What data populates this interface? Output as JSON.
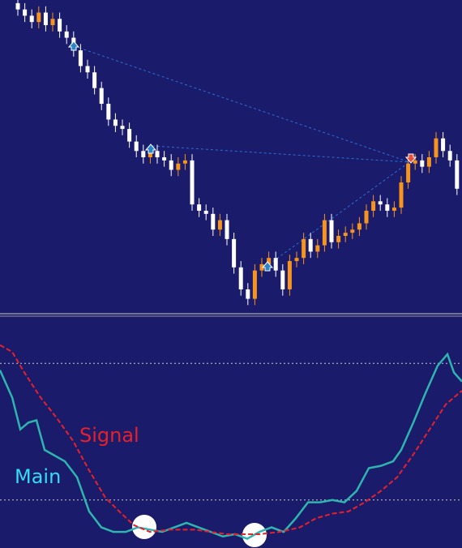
{
  "chart_data": [
    {
      "type": "candlestick",
      "xlim": [
        -2.56,
        63.72
      ],
      "ylim": [
        0,
        100
      ],
      "up_color": "#f7941d",
      "down_color": "#ffffff",
      "open": [
        99,
        97,
        95,
        93,
        96,
        92,
        94,
        90,
        88,
        84,
        79,
        77,
        72,
        67,
        62,
        60,
        59,
        55,
        52,
        50,
        52,
        50,
        49,
        46,
        48,
        49,
        35,
        33,
        32,
        27,
        30,
        24,
        15,
        8,
        5,
        14,
        16,
        18,
        14,
        8,
        17,
        18,
        24,
        20,
        22,
        30,
        23,
        25,
        26,
        27,
        29,
        33,
        36,
        35,
        33,
        34,
        42,
        48,
        49,
        47,
        50,
        56,
        52,
        49
      ],
      "high": [
        100,
        99,
        97,
        98,
        98,
        96,
        96,
        92,
        90,
        86,
        81,
        79,
        74,
        69,
        64,
        62,
        61,
        57,
        54,
        54,
        54,
        52,
        51,
        50,
        51,
        51,
        37,
        35,
        34,
        32,
        32,
        26,
        17,
        10,
        16,
        18,
        20,
        20,
        16,
        19,
        20,
        26,
        26,
        24,
        32,
        32,
        27,
        28,
        29,
        31,
        35,
        38,
        38,
        37,
        36,
        44,
        50,
        51,
        51,
        52,
        58,
        58,
        54,
        51
      ],
      "low": [
        95,
        93,
        91,
        91,
        90,
        90,
        88,
        86,
        82,
        77,
        75,
        70,
        65,
        60,
        58,
        57,
        53,
        50,
        48,
        48,
        48,
        47,
        44,
        44,
        46,
        33,
        31,
        30,
        25,
        25,
        22,
        13,
        6,
        3,
        3,
        12,
        14,
        12,
        6,
        6,
        15,
        16,
        18,
        18,
        20,
        21,
        21,
        23,
        24,
        25,
        27,
        31,
        33,
        31,
        31,
        32,
        40,
        46,
        45,
        45,
        48,
        50,
        47,
        38
      ],
      "close": [
        97,
        95,
        93,
        96,
        92,
        94,
        90,
        88,
        84,
        79,
        77,
        72,
        67,
        62,
        60,
        59,
        55,
        52,
        50,
        52,
        50,
        49,
        46,
        48,
        49,
        35,
        33,
        32,
        27,
        30,
        24,
        15,
        8,
        5,
        14,
        16,
        18,
        14,
        8,
        17,
        18,
        24,
        20,
        22,
        30,
        23,
        25,
        26,
        27,
        29,
        33,
        36,
        35,
        33,
        34,
        42,
        48,
        49,
        47,
        50,
        56,
        52,
        49,
        40
      ]
    },
    {
      "type": "line",
      "xlim": [
        -2.56,
        63.72
      ],
      "ylim": [
        0,
        100
      ],
      "levels": [
        80,
        20
      ],
      "series": [
        {
          "name": "Main",
          "color": "#2fb5b0",
          "dashed": false,
          "x": [
            -2.56,
            -0.81,
            0.35,
            1.51,
            2.67,
            3.84,
            5,
            6.74,
            8.49,
            10.23,
            11.98,
            13.72,
            15.47,
            17.21,
            18.95,
            20.7,
            22.44,
            24.19,
            25.93,
            27.67,
            29.42,
            31.16,
            32.91,
            34.65,
            36.4,
            38.14,
            39.88,
            41.63,
            43.37,
            45.12,
            46.86,
            48.6,
            50.35,
            52.09,
            53.84,
            55,
            56.74,
            58.49,
            60.23,
            61.63,
            62.56,
            63.72
          ],
          "values": [
            77,
            65,
            51,
            54,
            55,
            42,
            40,
            37,
            30,
            15,
            8,
            6,
            6,
            8,
            7,
            6,
            8,
            10,
            8,
            6,
            4,
            5,
            3,
            6,
            8,
            6,
            12,
            19,
            19,
            20,
            19,
            24,
            34,
            35,
            37,
            42,
            54,
            67,
            79,
            84,
            76,
            72
          ]
        },
        {
          "name": "Signal",
          "color": "#e8202a",
          "dashed": true,
          "x": [
            -2.56,
            -0.81,
            0.93,
            3.26,
            5.58,
            7.91,
            10.23,
            12.56,
            14.88,
            16.63,
            18.95,
            21.86,
            25.35,
            27.67,
            30,
            32.33,
            34.65,
            37.56,
            40.47,
            42.79,
            45.12,
            47.44,
            49.77,
            52.09,
            54.42,
            56.74,
            59.07,
            61.4,
            63.72
          ],
          "values": [
            88,
            85,
            76,
            65,
            56,
            46,
            33,
            21,
            14,
            9,
            6,
            7,
            7,
            6,
            5,
            5,
            5,
            6,
            8,
            12,
            14,
            15,
            19,
            24,
            30,
            40,
            51,
            62,
            68
          ]
        }
      ]
    }
  ]
}
